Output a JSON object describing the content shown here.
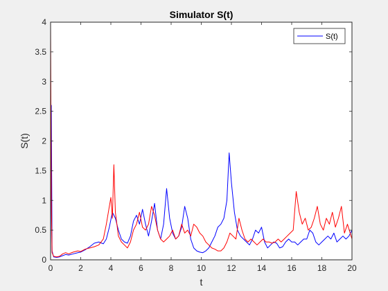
{
  "chart_data": {
    "type": "line",
    "title": "Simulator S(t)",
    "xlabel": "t",
    "ylabel": "S(t)",
    "xlim": [
      0,
      20
    ],
    "ylim": [
      0,
      4
    ],
    "xticks": [
      "0",
      "2",
      "4",
      "6",
      "8",
      "10",
      "12",
      "14",
      "16",
      "18",
      "20"
    ],
    "yticks": [
      "0",
      "0.5",
      "1",
      "1.5",
      "2",
      "2.5",
      "3",
      "3.5",
      "4"
    ],
    "grid": false,
    "legend_position": "top-right",
    "series": [
      {
        "name": "S(t)",
        "color": "#0000ff",
        "x": [
          0,
          0.05,
          0.1,
          0.2,
          0.4,
          0.6,
          0.8,
          1.0,
          1.2,
          1.5,
          1.8,
          2.0,
          2.3,
          2.6,
          2.9,
          3.2,
          3.5,
          3.7,
          3.9,
          4.1,
          4.3,
          4.5,
          4.7,
          4.9,
          5.1,
          5.3,
          5.5,
          5.7,
          5.9,
          6.1,
          6.3,
          6.5,
          6.7,
          6.9,
          7.1,
          7.3,
          7.5,
          7.7,
          7.9,
          8.1,
          8.3,
          8.5,
          8.7,
          8.9,
          9.1,
          9.3,
          9.5,
          9.7,
          9.9,
          10.1,
          10.3,
          10.5,
          10.7,
          10.9,
          11.1,
          11.3,
          11.5,
          11.7,
          11.85,
          12.0,
          12.2,
          12.4,
          12.6,
          12.8,
          13.0,
          13.2,
          13.4,
          13.6,
          13.8,
          14.0,
          14.2,
          14.4,
          14.6,
          14.8,
          15.0,
          15.2,
          15.4,
          15.6,
          15.8,
          16.0,
          16.2,
          16.4,
          16.6,
          16.8,
          17.0,
          17.2,
          17.4,
          17.6,
          17.8,
          18.0,
          18.2,
          18.4,
          18.6,
          18.8,
          19.0,
          19.2,
          19.4,
          19.6,
          19.8,
          20.0
        ],
        "y": [
          0.0,
          2.6,
          0.15,
          0.05,
          0.04,
          0.05,
          0.07,
          0.09,
          0.08,
          0.1,
          0.12,
          0.13,
          0.17,
          0.22,
          0.28,
          0.3,
          0.27,
          0.35,
          0.55,
          0.8,
          0.7,
          0.5,
          0.35,
          0.3,
          0.28,
          0.4,
          0.65,
          0.75,
          0.6,
          0.85,
          0.6,
          0.4,
          0.65,
          0.95,
          0.5,
          0.35,
          0.6,
          1.2,
          0.7,
          0.45,
          0.35,
          0.4,
          0.55,
          0.9,
          0.7,
          0.35,
          0.2,
          0.15,
          0.13,
          0.12,
          0.15,
          0.2,
          0.3,
          0.4,
          0.55,
          0.6,
          0.7,
          1.0,
          1.8,
          1.3,
          0.8,
          0.5,
          0.4,
          0.35,
          0.3,
          0.25,
          0.35,
          0.5,
          0.45,
          0.55,
          0.3,
          0.2,
          0.25,
          0.3,
          0.28,
          0.2,
          0.22,
          0.3,
          0.35,
          0.3,
          0.3,
          0.25,
          0.3,
          0.35,
          0.35,
          0.5,
          0.45,
          0.3,
          0.25,
          0.3,
          0.35,
          0.4,
          0.35,
          0.45,
          0.3,
          0.35,
          0.4,
          0.35,
          0.4,
          0.5
        ]
      },
      {
        "name": "",
        "color": "#ff0000",
        "x": [
          0,
          0.05,
          0.1,
          0.2,
          0.4,
          0.6,
          0.8,
          1.0,
          1.2,
          1.5,
          1.8,
          2.0,
          2.3,
          2.6,
          2.9,
          3.2,
          3.5,
          3.7,
          3.9,
          4.0,
          4.1,
          4.2,
          4.3,
          4.5,
          4.7,
          4.9,
          5.1,
          5.3,
          5.5,
          5.7,
          5.9,
          6.1,
          6.3,
          6.5,
          6.7,
          6.9,
          7.1,
          7.3,
          7.5,
          7.7,
          7.9,
          8.1,
          8.3,
          8.5,
          8.7,
          8.9,
          9.1,
          9.3,
          9.5,
          9.7,
          9.9,
          10.1,
          10.3,
          10.5,
          10.7,
          10.9,
          11.1,
          11.3,
          11.5,
          11.7,
          11.9,
          12.1,
          12.3,
          12.5,
          12.7,
          12.9,
          13.1,
          13.3,
          13.5,
          13.7,
          13.9,
          14.1,
          14.3,
          14.5,
          14.7,
          14.9,
          15.1,
          15.3,
          15.5,
          15.7,
          15.9,
          16.1,
          16.3,
          16.5,
          16.7,
          16.9,
          17.1,
          17.3,
          17.5,
          17.7,
          17.9,
          18.1,
          18.3,
          18.5,
          18.7,
          18.9,
          19.1,
          19.3,
          19.5,
          19.7,
          20.0
        ],
        "y": [
          4.0,
          1.0,
          0.12,
          0.06,
          0.05,
          0.06,
          0.1,
          0.12,
          0.1,
          0.13,
          0.15,
          0.14,
          0.18,
          0.2,
          0.22,
          0.25,
          0.35,
          0.6,
          0.9,
          1.05,
          0.7,
          1.6,
          0.8,
          0.4,
          0.3,
          0.25,
          0.2,
          0.3,
          0.5,
          0.6,
          0.8,
          0.55,
          0.5,
          0.6,
          0.9,
          0.75,
          0.5,
          0.35,
          0.3,
          0.35,
          0.4,
          0.5,
          0.35,
          0.4,
          0.6,
          0.45,
          0.5,
          0.4,
          0.6,
          0.55,
          0.45,
          0.4,
          0.3,
          0.25,
          0.2,
          0.18,
          0.15,
          0.15,
          0.2,
          0.3,
          0.45,
          0.4,
          0.35,
          0.7,
          0.5,
          0.35,
          0.3,
          0.35,
          0.3,
          0.25,
          0.3,
          0.35,
          0.3,
          0.3,
          0.28,
          0.3,
          0.35,
          0.3,
          0.35,
          0.4,
          0.45,
          0.5,
          1.15,
          0.8,
          0.6,
          0.7,
          0.5,
          0.55,
          0.7,
          0.9,
          0.6,
          0.5,
          0.7,
          0.6,
          0.8,
          0.55,
          0.7,
          0.9,
          0.45,
          0.6,
          0.35
        ]
      }
    ]
  }
}
